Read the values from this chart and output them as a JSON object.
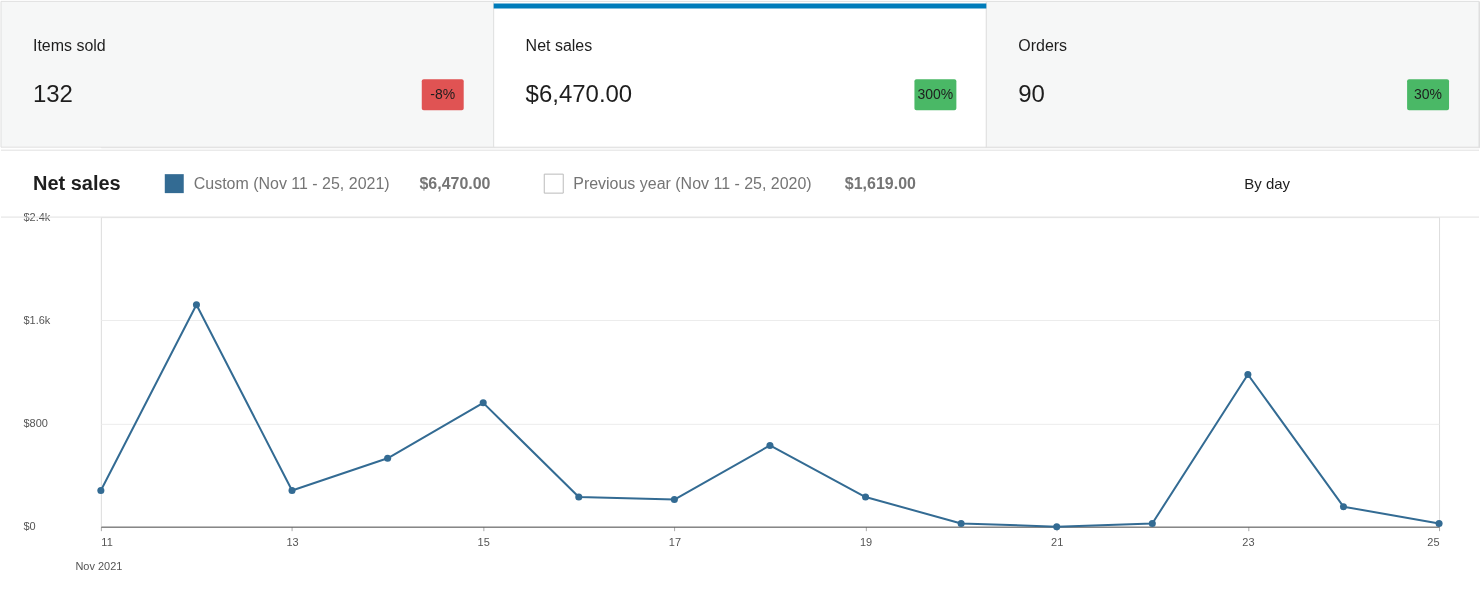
{
  "chart_data": [
    {
      "type": "other",
      "annotations": [
        "Items sold",
        "132",
        "-8%",
        "Net sales",
        "$6,470.00",
        "300%",
        "Orders",
        "90",
        "30%"
      ],
      "colors": [
        "#e05353",
        "#4ab866",
        "#4ab866"
      ]
    },
    {
      "type": "line",
      "title": "Net sales",
      "xlabel": "Nov 2021",
      "x": [
        "2021-11-11",
        "2021-11-12",
        "2021-11-13",
        "2021-11-14",
        "2021-11-15",
        "2021-11-16",
        "2021-11-17",
        "2021-11-18",
        "2021-11-19",
        "2021-11-20",
        "2021-11-21",
        "2021-11-22",
        "2021-11-23",
        "2021-11-24",
        "2021-11-25"
      ],
      "series": [
        {
          "name": "Custom (Nov 11 - 25, 2021)",
          "color": "#336b93",
          "values": [
            280,
            1720,
            280,
            530,
            960,
            230,
            210,
            630,
            230,
            25,
            0,
            25,
            1180,
            155,
            25
          ]
        }
      ],
      "annotations": [
        "$6,470.00",
        "Previous year (Nov 11 - 25, 2020)",
        "$1,619.00",
        "By day"
      ],
      "xlim": [
        "2021-11-11",
        "2021-11-25"
      ],
      "xticks": [
        {
          "value": "2021-11-11",
          "label": "11"
        },
        {
          "value": "2021-11-13",
          "label": "13"
        },
        {
          "value": "2021-11-15",
          "label": "15"
        },
        {
          "value": "2021-11-17",
          "label": "17"
        },
        {
          "value": "2021-11-19",
          "label": "19"
        },
        {
          "value": "2021-11-21",
          "label": "21"
        },
        {
          "value": "2021-11-23",
          "label": "23"
        },
        {
          "value": "2021-11-25",
          "label": "25"
        }
      ],
      "ylim": [
        0,
        2400
      ],
      "yticks": [
        {
          "value": 0,
          "label": "$0"
        },
        {
          "value": 800,
          "label": "$800"
        },
        {
          "value": 1600,
          "label": "$1.6k"
        },
        {
          "value": 2400,
          "label": "$2.4k"
        }
      ],
      "grid": "y",
      "legend": "top left",
      "marker": "circle",
      "line_style": "solid"
    }
  ]
}
